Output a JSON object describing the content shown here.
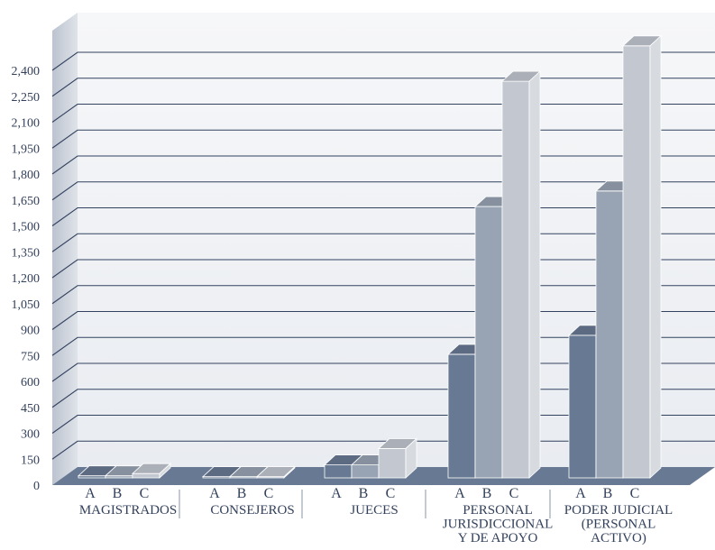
{
  "chart_data": {
    "type": "bar",
    "title": "",
    "xlabel": "",
    "ylabel": "",
    "ylim": [
      0,
      2550
    ],
    "y_ticks": [
      0,
      150,
      300,
      450,
      600,
      750,
      900,
      1050,
      1200,
      1350,
      1500,
      1650,
      1800,
      1950,
      2100,
      2250,
      2400
    ],
    "y_tick_labels": [
      "0",
      "150",
      "300",
      "450",
      "600",
      "750",
      "900",
      "1,050",
      "1,200",
      "1,350",
      "1,500",
      "1,650",
      "1,800",
      "1,950",
      "2,100",
      "2,250",
      "2,400"
    ],
    "categories": [
      "MAGISTRADOS",
      "CONSEJEROS",
      "JUECES",
      "PERSONAL JURISDICCIONAL Y DE APOYO",
      "PODER JUDICIAL (PERSONAL ACTIVO)"
    ],
    "category_label_lines": [
      [
        "MAGISTRADOS"
      ],
      [
        "CONSEJEROS"
      ],
      [
        "JUECES"
      ],
      [
        "PERSONAL",
        "JURISDICCIONAL",
        "Y DE APOYO"
      ],
      [
        "PODER JUDICIAL",
        "(PERSONAL",
        "ACTIVO)"
      ]
    ],
    "series": [
      {
        "name": "A",
        "color": "#687a93",
        "values": [
          12,
          7,
          75,
          715,
          825
        ]
      },
      {
        "name": "B",
        "color": "#98a4b3",
        "values": [
          12,
          7,
          75,
          1570,
          1660
        ]
      },
      {
        "name": "C",
        "color": "#c2c7d0",
        "values": [
          25,
          7,
          170,
          2295,
          2500
        ]
      }
    ],
    "grid": true,
    "style": "3d",
    "colors": {
      "floor": "#687a93",
      "wall": "#e9ecf1",
      "grid": "#33425f"
    }
  }
}
